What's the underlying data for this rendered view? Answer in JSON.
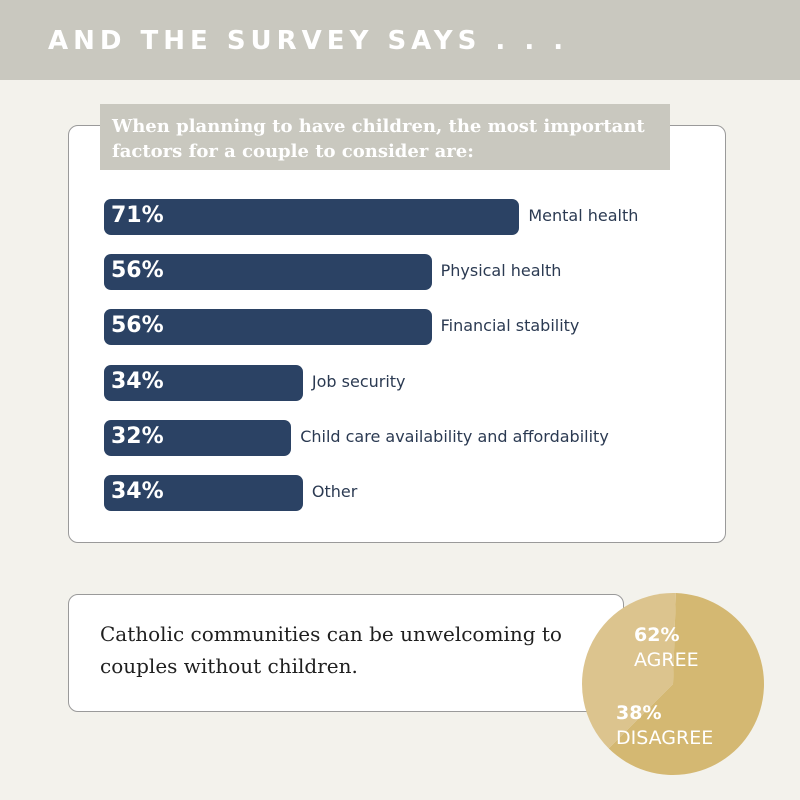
{
  "header": {
    "title": "AND THE SURVEY SAYS . . ."
  },
  "question": "When planning to have children, the most important factors for a couple to consider are:",
  "statement": "Catholic communities can be unwelcoming to couples without children.",
  "colors": {
    "bar": "#2b4264",
    "header_bg": "#c9c8bf",
    "page_bg": "#f3f2ec",
    "pie_agree": "#d4b872",
    "pie_disagree": "#dcc48e"
  },
  "chart_data": [
    {
      "type": "bar",
      "orientation": "horizontal",
      "title": "When planning to have children, the most important factors for a couple to consider are:",
      "categories": [
        "Mental health",
        "Physical health",
        "Financial stability",
        "Job security",
        "Child care availability and affordability",
        "Other"
      ],
      "values": [
        71,
        56,
        56,
        34,
        32,
        34
      ],
      "value_labels": [
        "71%",
        "56%",
        "56%",
        "34%",
        "32%",
        "34%"
      ],
      "unit": "%",
      "grid": false
    },
    {
      "type": "pie",
      "title": "Catholic communities can be unwelcoming to couples without children.",
      "slices": [
        {
          "label": "AGREE",
          "value": 62,
          "value_label": "62%"
        },
        {
          "label": "DISAGREE",
          "value": 38,
          "value_label": "38%"
        }
      ]
    }
  ]
}
